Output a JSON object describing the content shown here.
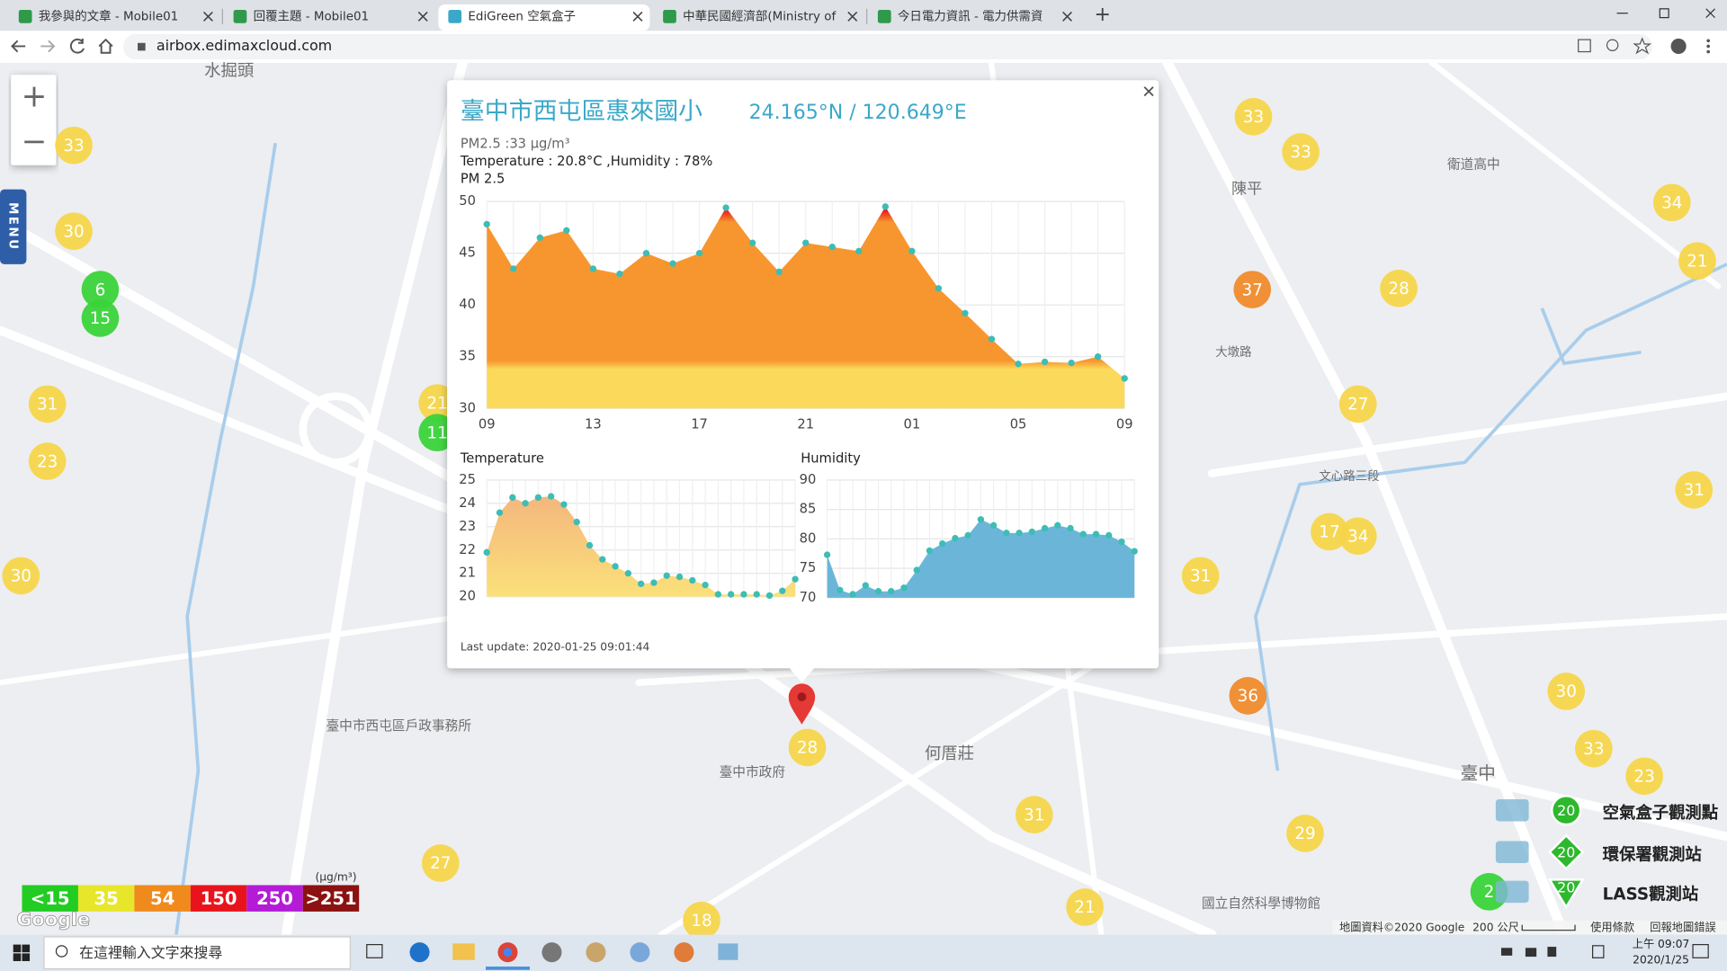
{
  "browser": {
    "tabs": [
      "我參與的文章 - Mobile01",
      "回覆主題 - Mobile01",
      "EdiGreen 空氣盒子",
      "中華民國經濟部(Ministry of Eco",
      "今日電力資訊 - 電力供需資訊 - 台"
    ],
    "url": "airbox.edimaxcloud.com"
  },
  "map": {
    "zoom_in": "+",
    "zoom_out": "−",
    "menu": "MENU",
    "labels": [
      "水掘頭",
      "陳平",
      "何厝莊",
      "臺中市政府",
      "衛道高中",
      "臺中",
      "文心路三段",
      "國立自然科學博物館",
      "臺中市西屯區戶政事務所",
      "大墩路"
    ],
    "markers": [
      {
        "value": 33,
        "color": "#f7d54a"
      },
      {
        "value": 30,
        "color": "#f7d54a"
      },
      {
        "value": 6,
        "color": "#3ad33a"
      },
      {
        "value": 15,
        "color": "#3ad33a"
      },
      {
        "value": 31,
        "color": "#f7d54a"
      },
      {
        "value": 23,
        "color": "#f7d54a"
      },
      {
        "value": 30,
        "color": "#f7d54a"
      },
      {
        "value": 21,
        "color": "#f7d54a"
      },
      {
        "value": 11,
        "color": "#3ad33a"
      },
      {
        "value": 33,
        "color": "#f7d54a"
      },
      {
        "value": 33,
        "color": "#f7d54a"
      },
      {
        "value": 34,
        "color": "#f7d54a"
      },
      {
        "value": 21,
        "color": "#f7d54a"
      },
      {
        "value": 37,
        "color": "#f08a2c"
      },
      {
        "value": 28,
        "color": "#f7d54a"
      },
      {
        "value": 27,
        "color": "#f7d54a"
      },
      {
        "value": 31,
        "color": "#f7d54a"
      },
      {
        "value": 17,
        "color": "#f7d54a"
      },
      {
        "value": 34,
        "color": "#f7d54a"
      },
      {
        "value": 31,
        "color": "#f7d54a"
      },
      {
        "value": 36,
        "color": "#f08a2c"
      },
      {
        "value": 30,
        "color": "#f7d54a"
      },
      {
        "value": 33,
        "color": "#f7d54a"
      },
      {
        "value": 23,
        "color": "#f7d54a"
      },
      {
        "value": 31,
        "color": "#f7d54a"
      },
      {
        "value": 29,
        "color": "#f7d54a"
      },
      {
        "value": 27,
        "color": "#f7d54a"
      },
      {
        "value": 21,
        "color": "#f7d54a"
      },
      {
        "value": 18,
        "color": "#f7d54a"
      },
      {
        "value": 2,
        "color": "#3ad33a"
      },
      {
        "value": 28,
        "color": "#f7d54a"
      }
    ],
    "attribution": "地圖資料©2020 Google",
    "scale": "200 公尺",
    "terms": "使用條款",
    "report": "回報地圖錯誤"
  },
  "legend": {
    "unit": "(μg/m³)",
    "levels": [
      {
        "label": "<15",
        "color": "#22cc22"
      },
      {
        "label": "35",
        "color": "#e8e62a"
      },
      {
        "label": "54",
        "color": "#f08a1c"
      },
      {
        "label": "150",
        "color": "#e8141c"
      },
      {
        "label": "250",
        "color": "#b41bd6"
      },
      {
        "label": ">251",
        "color": "#8c1111"
      }
    ]
  },
  "station_legend": [
    {
      "icon": 20,
      "label": "空氣盒子觀測點"
    },
    {
      "icon": 20,
      "label": "環保署觀測站"
    },
    {
      "icon": 20,
      "label": "LASS觀測站"
    }
  ],
  "popup": {
    "title": "臺中市西屯區惠來國小",
    "coords": "24.165°N / 120.649°E",
    "pm25": "PM2.5 :33 μg/m³",
    "weather": "Temperature : 20.8°C ,Humidity : 78%",
    "last_update": "Last update: 2020-01-25 09:01:44"
  },
  "chart_data": [
    {
      "type": "area",
      "title": "PM 2.5",
      "categories": [
        "09",
        null,
        null,
        null,
        "13",
        null,
        null,
        null,
        "17",
        null,
        null,
        null,
        "21",
        null,
        null,
        null,
        "01",
        null,
        null,
        null,
        "05",
        null,
        null,
        null,
        "09"
      ],
      "values": [
        47.8,
        43.5,
        46.5,
        47.2,
        43.5,
        43,
        45,
        44,
        45,
        49.4,
        46,
        43.2,
        46,
        45.6,
        45.2,
        49.5,
        45.2,
        41.6,
        39.2,
        36.7,
        34.3,
        34.5,
        34.4,
        35,
        32.9
      ],
      "ylim": [
        30,
        50
      ],
      "yticks": [
        30,
        35,
        40,
        45,
        50
      ],
      "colors": [
        "#fbd95a",
        "#f7962f",
        "#e8141c"
      ],
      "point_color": "#3dbdb5",
      "grid": true
    },
    {
      "type": "area",
      "title": "Temperature",
      "values": [
        21.9,
        23.6,
        24.25,
        24,
        24.25,
        24.3,
        23.95,
        23.2,
        22.2,
        21.6,
        21.3,
        21,
        20.55,
        20.6,
        20.9,
        20.85,
        20.7,
        20.5,
        20.1,
        20.1,
        20.1,
        20.1,
        20.05,
        20.25,
        20.75
      ],
      "ylim": [
        20,
        25
      ],
      "yticks": [
        20,
        21,
        22,
        23,
        24,
        25
      ],
      "colors": [
        "#fbe07a",
        "#f2b07e"
      ],
      "point_color": "#3dbdb5",
      "grid": true
    },
    {
      "type": "area",
      "title": "Humidity",
      "values": [
        77.3,
        71.3,
        70.6,
        72.1,
        71.1,
        71.1,
        71.7,
        74.7,
        78,
        79.2,
        80.1,
        80.6,
        83.3,
        82.3,
        81,
        81,
        81.2,
        81.8,
        82.3,
        81.8,
        80.8,
        80.8,
        80.6,
        79.5,
        77.9
      ],
      "ylim": [
        70,
        90
      ],
      "yticks": [
        70,
        75,
        80,
        85,
        90
      ],
      "colors": [
        "#6bb6d8",
        "#6bb6d8"
      ],
      "point_color": "#3dbdb5",
      "grid": true
    }
  ],
  "taskbar": {
    "search": "在這裡輸入文字來搜尋",
    "time": "上午 09:07",
    "date": "2020/1/25"
  }
}
